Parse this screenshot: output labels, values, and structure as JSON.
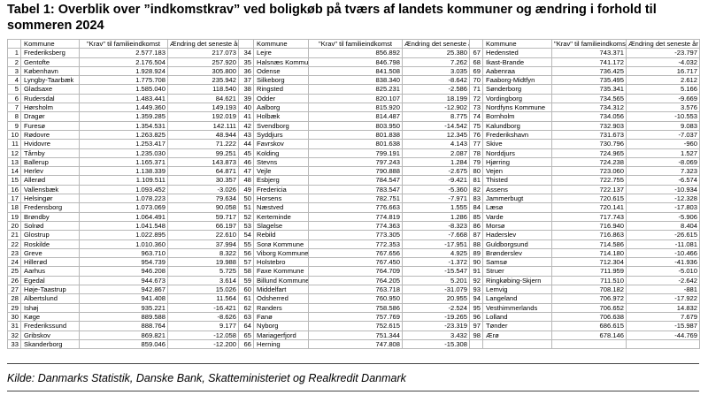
{
  "title": "Tabel 1: Overblik over ”indkomstkrav” ved boligkøb på tværs af landets kommuner og ændring i forhold til sommeren 2024",
  "table": {
    "header": [
      "Kommune",
      "\"Krav\" til familieindkomst",
      "Ændring det seneste år"
    ],
    "groups": [
      {
        "rows": [
          [
            "1",
            "Frederiksberg",
            "2.577.183",
            "217.073"
          ],
          [
            "2",
            "Gentofte",
            "2.176.504",
            "257.920"
          ],
          [
            "3",
            "København",
            "1.928.924",
            "305.800"
          ],
          [
            "4",
            "Lyngby-Taarbæk",
            "1.775.708",
            "235.942"
          ],
          [
            "5",
            "Gladsaxe",
            "1.585.040",
            "118.540"
          ],
          [
            "6",
            "Rudersdal",
            "1.483.441",
            "84.621"
          ],
          [
            "7",
            "Hørsholm",
            "1.449.360",
            "149.193"
          ],
          [
            "8",
            "Dragør",
            "1.359.285",
            "192.019"
          ],
          [
            "9",
            "Furesø",
            "1.354.531",
            "142.111"
          ],
          [
            "10",
            "Rødovre",
            "1.263.825",
            "48.944"
          ],
          [
            "11",
            "Hvidovre",
            "1.253.417",
            "71.222"
          ],
          [
            "12",
            "Tårnby",
            "1.235.030",
            "99.251"
          ],
          [
            "13",
            "Ballerup",
            "1.165.371",
            "143.873"
          ],
          [
            "14",
            "Herlev",
            "1.138.339",
            "64.871"
          ],
          [
            "15",
            "Allerød",
            "1.109.511",
            "30.357"
          ],
          [
            "16",
            "Vallensbæk",
            "1.093.452",
            "-3.026"
          ],
          [
            "17",
            "Helsingør",
            "1.078.223",
            "79.634"
          ],
          [
            "18",
            "Fredensborg",
            "1.073.069",
            "90.058"
          ],
          [
            "19",
            "Brøndby",
            "1.064.491",
            "59.717"
          ],
          [
            "20",
            "Solrød",
            "1.041.548",
            "66.197"
          ],
          [
            "21",
            "Glostrup",
            "1.022.895",
            "22.610"
          ],
          [
            "22",
            "Roskilde",
            "1.010.360",
            "37.994"
          ],
          [
            "23",
            "Greve",
            "963.710",
            "8.322"
          ],
          [
            "24",
            "Hillerød",
            "954.739",
            "19.988"
          ],
          [
            "25",
            "Aarhus",
            "946.208",
            "5.725"
          ],
          [
            "26",
            "Egedal",
            "944.673",
            "3.614"
          ],
          [
            "27",
            "Høje-Taastrup",
            "942.867",
            "15.026"
          ],
          [
            "28",
            "Albertslund",
            "941.408",
            "11.564"
          ],
          [
            "29",
            "Ishøj",
            "935.221",
            "-16.421"
          ],
          [
            "30",
            "Køge",
            "889.588",
            "-8.626"
          ],
          [
            "31",
            "Frederikssund",
            "888.764",
            "9.177"
          ],
          [
            "32",
            "Gribskov",
            "869.821",
            "-12.058"
          ],
          [
            "33",
            "Skanderborg",
            "859.046",
            "-12.200"
          ]
        ]
      },
      {
        "rows": [
          [
            "34",
            "Lejre",
            "856.892",
            "25.380"
          ],
          [
            "35",
            "Halsnæs Kommune",
            "846.798",
            "7.262"
          ],
          [
            "36",
            "Odense",
            "841.508",
            "3.035"
          ],
          [
            "37",
            "Silkeborg",
            "838.340",
            "-8.642"
          ],
          [
            "38",
            "Ringsted",
            "825.231",
            "-2.586"
          ],
          [
            "39",
            "Odder",
            "820.107",
            "18.199"
          ],
          [
            "40",
            "Aalborg",
            "815.920",
            "-12.902"
          ],
          [
            "41",
            "Holbæk",
            "814.487",
            "8.775"
          ],
          [
            "42",
            "Svendborg",
            "803.950",
            "-14.542"
          ],
          [
            "43",
            "Syddjurs",
            "801.838",
            "12.345"
          ],
          [
            "44",
            "Favrskov",
            "801.638",
            "4.143"
          ],
          [
            "45",
            "Kolding",
            "799.191",
            "2.087"
          ],
          [
            "46",
            "Stevns",
            "797.243",
            "1.284"
          ],
          [
            "47",
            "Vejle",
            "790.888",
            "-2.675"
          ],
          [
            "48",
            "Esbjerg",
            "784.547",
            "-9.421"
          ],
          [
            "49",
            "Fredericia",
            "783.547",
            "-5.360"
          ],
          [
            "50",
            "Horsens",
            "782.751",
            "-7.971"
          ],
          [
            "51",
            "Næstved",
            "776.663",
            "1.555"
          ],
          [
            "52",
            "Kerteminde",
            "774.819",
            "1.286"
          ],
          [
            "53",
            "Slagelse",
            "774.363",
            "-8.323"
          ],
          [
            "54",
            "Rebild",
            "773.305",
            "-7.668"
          ],
          [
            "55",
            "Sorø Kommune",
            "772.353",
            "-17.951"
          ],
          [
            "56",
            "Viborg Kommune",
            "767.656",
            "4.925"
          ],
          [
            "57",
            "Holstebro",
            "767.450",
            "-1.372"
          ],
          [
            "58",
            "Faxe Kommune",
            "764.709",
            "-15.547"
          ],
          [
            "59",
            "Billund Kommune",
            "764.205",
            "5.201"
          ],
          [
            "60",
            "Middelfart",
            "763.718",
            "-31.079"
          ],
          [
            "61",
            "Odsherred",
            "760.950",
            "20.955"
          ],
          [
            "62",
            "Randers",
            "758.586",
            "-2.524"
          ],
          [
            "63",
            "Fanø",
            "757.769",
            "-19.265"
          ],
          [
            "64",
            "Nyborg",
            "752.615",
            "-23.319"
          ],
          [
            "65",
            "Mariagerfjord",
            "751.344",
            "3.432"
          ],
          [
            "66",
            "Herning",
            "747.808",
            "-15.308"
          ]
        ]
      },
      {
        "rows": [
          [
            "67",
            "Hedensted",
            "743.371",
            "-23.797"
          ],
          [
            "68",
            "Ikast-Brande",
            "741.172",
            "-4.032"
          ],
          [
            "69",
            "Aabenraa",
            "736.425",
            "16.717"
          ],
          [
            "70",
            "Faaborg-Midtfyn",
            "735.495",
            "2.612"
          ],
          [
            "71",
            "Sønderborg",
            "735.341",
            "5.166"
          ],
          [
            "72",
            "Vordingborg",
            "734.565",
            "-9.669"
          ],
          [
            "73",
            "Nordfyns Kommune",
            "734.312",
            "3.576"
          ],
          [
            "74",
            "Bornholm",
            "734.056",
            "-10.553"
          ],
          [
            "75",
            "Kalundborg",
            "732.903",
            "9.083"
          ],
          [
            "76",
            "Frederikshavn",
            "731.673",
            "-7.037"
          ],
          [
            "77",
            "Skive",
            "730.796",
            "-960"
          ],
          [
            "78",
            "Norddjurs",
            "724.965",
            "1.527"
          ],
          [
            "79",
            "Hjørring",
            "724.238",
            "-8.069"
          ],
          [
            "80",
            "Vejen",
            "723.060",
            "7.323"
          ],
          [
            "81",
            "Thisted",
            "722.755",
            "-6.574"
          ],
          [
            "82",
            "Assens",
            "722.137",
            "-10.934"
          ],
          [
            "83",
            "Jammerbugt",
            "720.615",
            "-12.328"
          ],
          [
            "84",
            "Læsø",
            "720.141",
            "-17.803"
          ],
          [
            "85",
            "Varde",
            "717.743",
            "-5.906"
          ],
          [
            "86",
            "Morsø",
            "716.940",
            "8.404"
          ],
          [
            "87",
            "Haderslev",
            "716.863",
            "-26.615"
          ],
          [
            "88",
            "Guldborgsund",
            "714.586",
            "-11.081"
          ],
          [
            "89",
            "Brønderslev",
            "714.180",
            "-10.466"
          ],
          [
            "90",
            "Samsø",
            "712.304",
            "-41.936"
          ],
          [
            "91",
            "Struer",
            "711.959",
            "-5.010"
          ],
          [
            "92",
            "Ringkøbing-Skjern",
            "711.510",
            "-2.642"
          ],
          [
            "93",
            "Lemvig",
            "708.182",
            "-881"
          ],
          [
            "94",
            "Langeland",
            "706.972",
            "-17.922"
          ],
          [
            "95",
            "Vesthimmerlands",
            "706.652",
            "14.832"
          ],
          [
            "96",
            "Lolland",
            "706.638",
            "7.679"
          ],
          [
            "97",
            "Tønder",
            "686.615",
            "-15.987"
          ],
          [
            "98",
            "Ærø",
            "678.146",
            "-44.769"
          ]
        ]
      }
    ]
  },
  "source": "Kilde: Danmarks Statistik, Danske Bank, Skatteministeriet og Realkredit Danmark"
}
